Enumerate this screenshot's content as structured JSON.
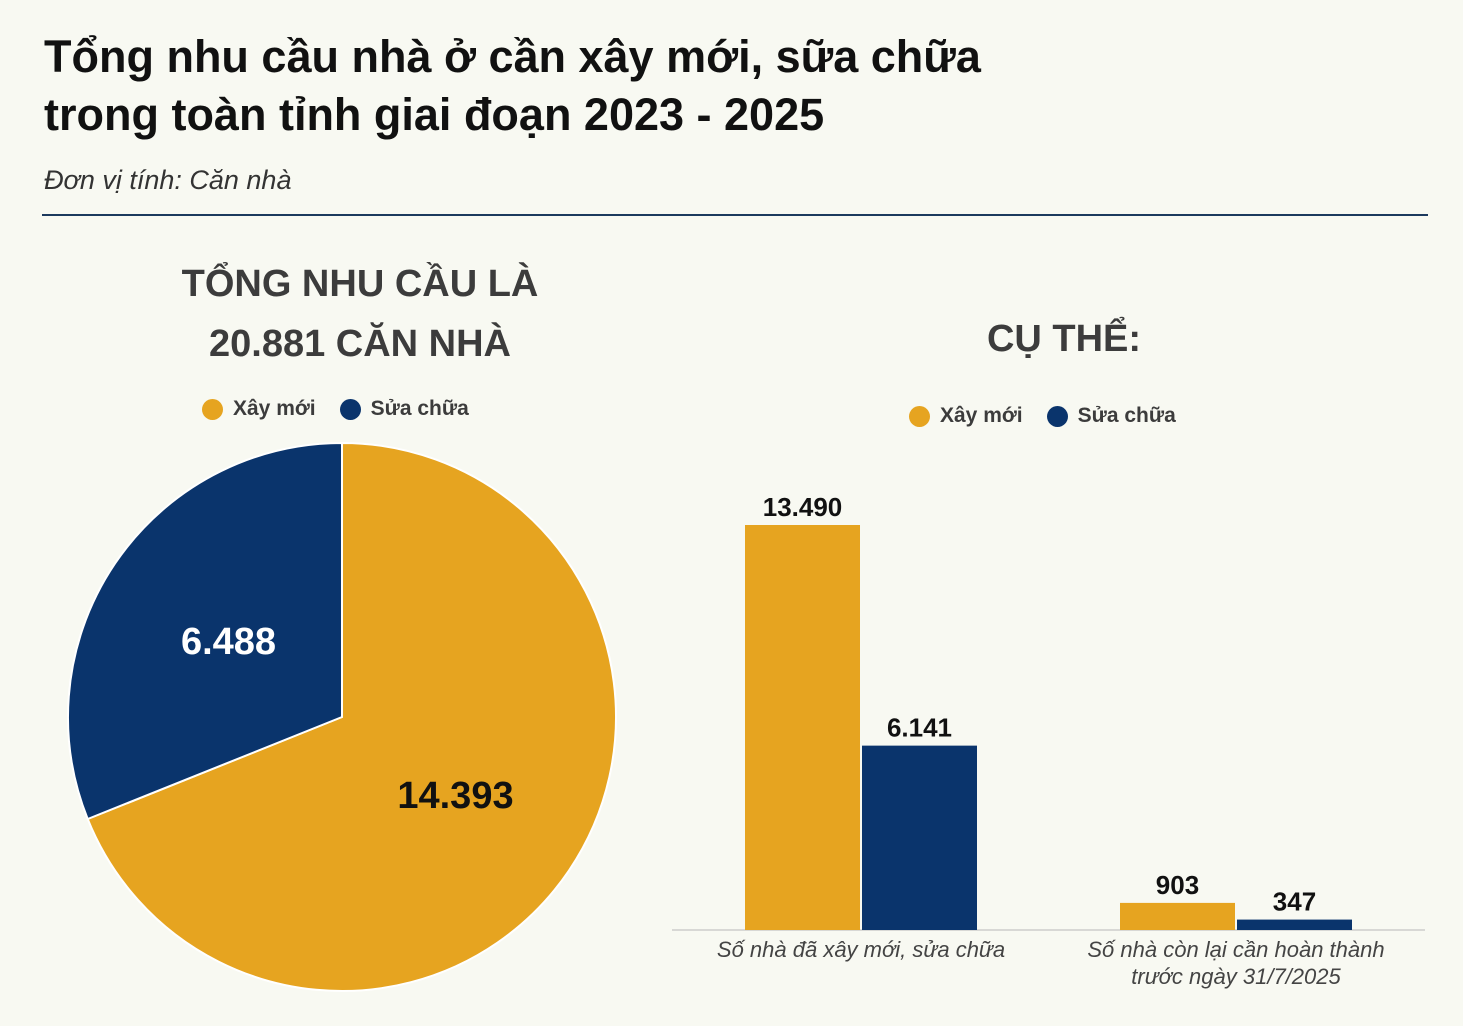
{
  "title_lines": [
    "Tổng nhu cầu nhà ở cần xây mới, sữa chữa",
    "trong toàn tỉnh giai đoạn 2023 - 2025"
  ],
  "unit": "Đơn vị tính: Căn nhà",
  "colors": {
    "xay_moi": "#e6a420",
    "sua_chua": "#0a346c"
  },
  "chart_data": [
    {
      "type": "pie",
      "title_lines": [
        "TỔNG NHU CẦU LÀ",
        "20.881 CĂN NHÀ"
      ],
      "legend": [
        "Xây mới",
        "Sửa chữa"
      ],
      "slices": [
        {
          "name": "Xây mới",
          "value": 14393,
          "label": "14.393"
        },
        {
          "name": "Sửa chữa",
          "value": 6488,
          "label": "6.488"
        }
      ]
    },
    {
      "type": "bar",
      "title": "CỤ THỂ:",
      "legend": [
        "Xây mới",
        "Sửa chữa"
      ],
      "categories": [
        "Số nhà đã xây mới, sửa chữa",
        "Số nhà còn lại cần hoàn thành trước ngày 31/7/2025"
      ],
      "category_lines": [
        [
          "Số nhà đã xây mới, sửa chữa"
        ],
        [
          "Số nhà còn lại cần hoàn thành",
          "trước ngày 31/7/2025"
        ]
      ],
      "series": [
        {
          "name": "Xây mới",
          "values": [
            13490,
            903
          ],
          "labels": [
            "13.490",
            "903"
          ]
        },
        {
          "name": "Sửa chữa",
          "values": [
            6141,
            347
          ],
          "labels": [
            "6.141",
            "347"
          ]
        }
      ]
    }
  ]
}
